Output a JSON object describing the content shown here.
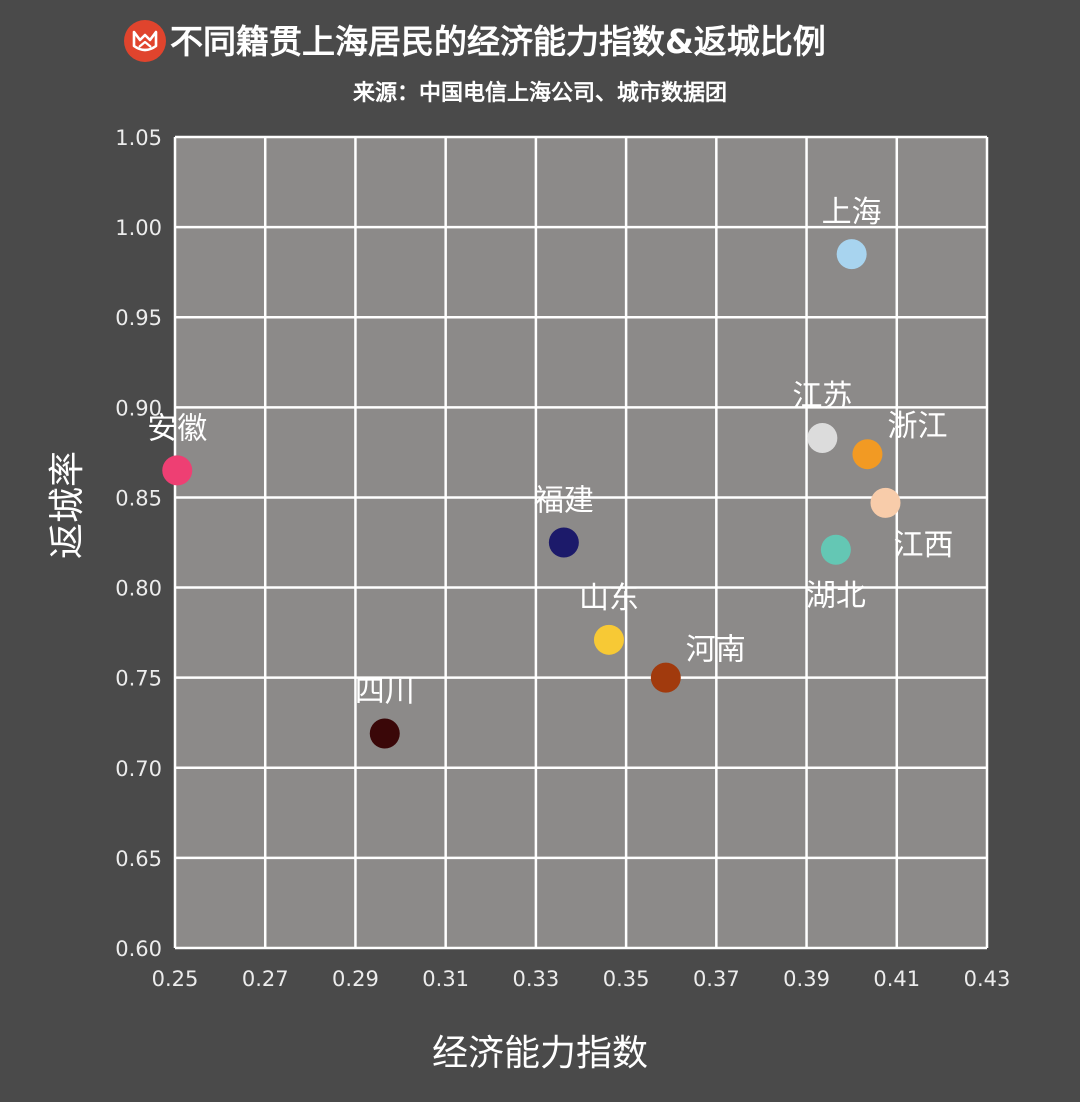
{
  "header": {
    "logo_icon": "fox-logo-icon",
    "title": "不同籍贯上海居民的经济能力指数&返城比例",
    "subtitle": "来源：中国电信上海公司、城市数据团"
  },
  "chart_data": {
    "type": "scatter",
    "title": "不同籍贯上海居民的经济能力指数&返城比例",
    "subtitle": "来源：中国电信上海公司、城市数据团",
    "xlabel": "经济能力指数",
    "ylabel": "返城率",
    "xlim": [
      0.25,
      0.43
    ],
    "ylim": [
      0.6,
      1.05
    ],
    "x_ticks": [
      "0.25",
      "0.27",
      "0.29",
      "0.31",
      "0.33",
      "0.35",
      "0.37",
      "0.39",
      "0.41",
      "0.43"
    ],
    "y_ticks": [
      "0.60",
      "0.65",
      "0.70",
      "0.75",
      "0.80",
      "0.85",
      "0.90",
      "0.95",
      "1.00",
      "1.05"
    ],
    "grid": true,
    "legend": "none",
    "plot_background": "#8c8a89",
    "grid_color": "#ffffff",
    "points": [
      {
        "label": "上海",
        "x": 0.4,
        "y": 0.985,
        "color": "#a8d4ef",
        "label_side": "top"
      },
      {
        "label": "安徽",
        "x": 0.2505,
        "y": 0.865,
        "color": "#ee3f73",
        "label_side": "top"
      },
      {
        "label": "江苏",
        "x": 0.3935,
        "y": 0.883,
        "color": "#dcdcdc",
        "label_side": "top"
      },
      {
        "label": "浙江",
        "x": 0.4035,
        "y": 0.874,
        "color": "#f29a23",
        "label_side": "top-right"
      },
      {
        "label": "江西",
        "x": 0.4075,
        "y": 0.847,
        "color": "#f8ccaa",
        "label_side": "bottom-right"
      },
      {
        "label": "湖北",
        "x": 0.3965,
        "y": 0.821,
        "color": "#64c7b4",
        "label_side": "bottom"
      },
      {
        "label": "福建",
        "x": 0.3362,
        "y": 0.825,
        "color": "#1c1a6a",
        "label_side": "top"
      },
      {
        "label": "山东",
        "x": 0.3462,
        "y": 0.771,
        "color": "#f7c935",
        "label_side": "top"
      },
      {
        "label": "河南",
        "x": 0.3588,
        "y": 0.75,
        "color": "#a13a0d",
        "label_side": "top-right"
      },
      {
        "label": "四川",
        "x": 0.2965,
        "y": 0.719,
        "color": "#3a0708",
        "label_side": "top"
      }
    ]
  }
}
